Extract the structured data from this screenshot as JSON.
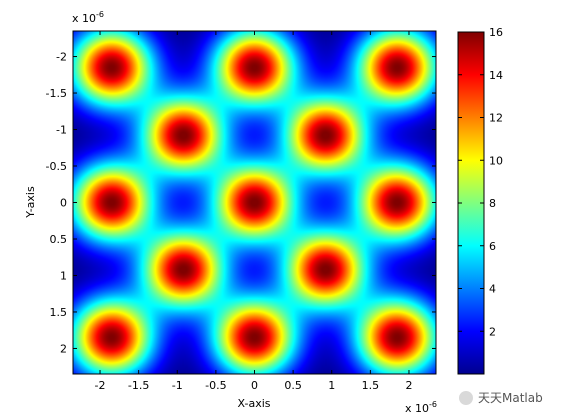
{
  "chart_data": {
    "type": "heatmap",
    "title": "",
    "xlabel": "X-axis",
    "ylabel": "Y-axis",
    "xlim": [
      -2.35,
      2.35
    ],
    "ylim": [
      -2.35,
      2.35
    ],
    "y_reversed": true,
    "x_ticks": [
      "-2",
      "-1.5",
      "-1",
      "-0.5",
      "0",
      "0.5",
      "1",
      "1.5",
      "2"
    ],
    "y_ticks": [
      "-2",
      "-1.5",
      "-1",
      "-0.5",
      "0",
      "0.5",
      "1",
      "1.5",
      "2"
    ],
    "x_tick_values": [
      -2,
      -1.5,
      -1,
      -0.5,
      0,
      0.5,
      1,
      1.5,
      2
    ],
    "y_tick_values": [
      -2,
      -1.5,
      -1,
      -0.5,
      0,
      0.5,
      1,
      1.5,
      2
    ],
    "x_multiplier": "x 10",
    "x_multiplier_exp": "-6",
    "y_multiplier": "x 10",
    "y_multiplier_exp": "-6",
    "colormap": "jet",
    "clim": [
      0,
      16
    ],
    "colorbar_ticks": [
      "16",
      "14",
      "12",
      "10",
      "8",
      "6",
      "4",
      "2"
    ],
    "colorbar_tick_values": [
      16,
      14,
      12,
      10,
      8,
      6,
      4,
      2
    ],
    "peak_value": 16,
    "peaks": [
      [
        -1.85,
        -1.85
      ],
      [
        0,
        -1.85
      ],
      [
        1.85,
        -1.85
      ],
      [
        -0.92,
        -0.92
      ],
      [
        0.92,
        -0.92
      ],
      [
        -1.85,
        0
      ],
      [
        0,
        0
      ],
      [
        1.85,
        0
      ],
      [
        -0.92,
        0.92
      ],
      [
        0.92,
        0.92
      ],
      [
        -1.85,
        1.85
      ],
      [
        0,
        1.85
      ],
      [
        1.85,
        1.85
      ]
    ]
  },
  "watermark": {
    "text": "天天Matlab"
  }
}
